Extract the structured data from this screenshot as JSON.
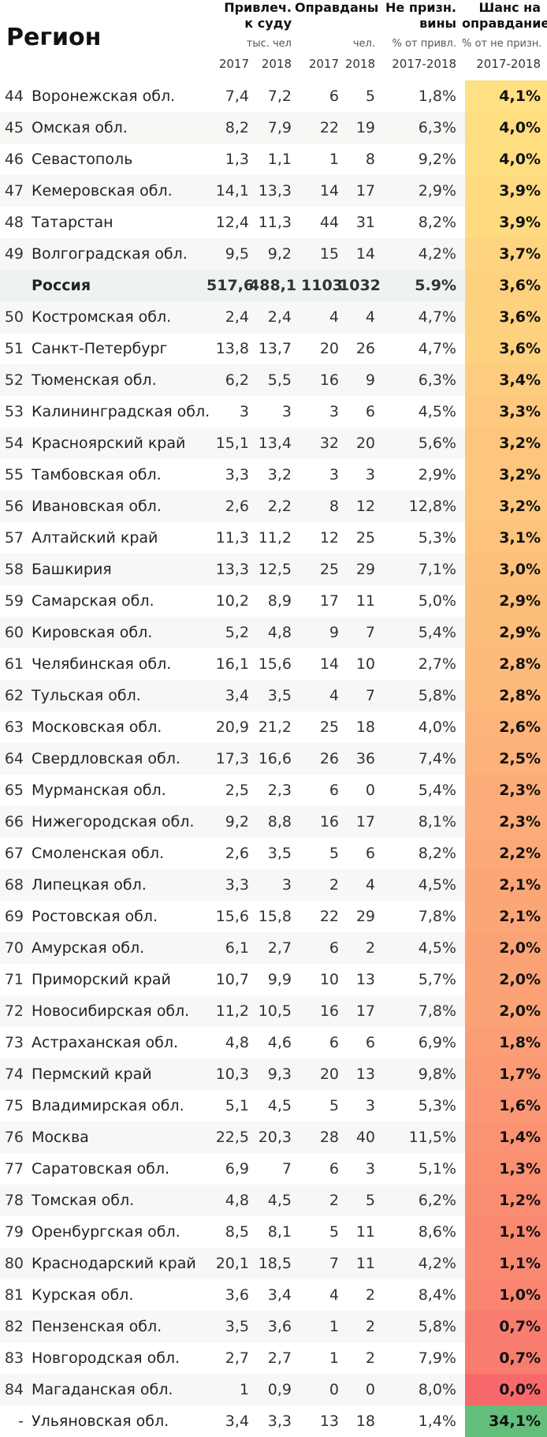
{
  "header": {
    "region": "Регион",
    "col_accused": "Привлеч.\nк суду",
    "col_accused_unit": "тыс. чел",
    "col_acquitted": "Оправданы",
    "col_acquitted_unit": "чел.",
    "col_notguilty": "Не призн.\nвины",
    "col_notguilty_unit": "% от привл.",
    "col_chance": "Шанс на\nоправдание",
    "col_chance_unit": "% от не призн.",
    "year_2017": "2017",
    "year_2018": "2018",
    "years_range": "2017-2018"
  },
  "colors": {
    "chance_high": "#ffe082",
    "chance_low": "#f8696b",
    "chance_top": "#63be7b"
  },
  "rows": [
    {
      "rank": "44",
      "region": "Воронежская обл.",
      "a2017": "7,4",
      "a2018": "7,2",
      "o2017": "6",
      "o2018": "5",
      "notguilty": "1,8%",
      "chance": "4,1%",
      "v": 4.1
    },
    {
      "rank": "45",
      "region": "Омская обл.",
      "a2017": "8,2",
      "a2018": "7,9",
      "o2017": "22",
      "o2018": "19",
      "notguilty": "6,3%",
      "chance": "4,0%",
      "v": 4.0
    },
    {
      "rank": "46",
      "region": "Севастополь",
      "a2017": "1,3",
      "a2018": "1,1",
      "o2017": "1",
      "o2018": "8",
      "notguilty": "9,2%",
      "chance": "4,0%",
      "v": 4.0
    },
    {
      "rank": "47",
      "region": "Кемеровская обл.",
      "a2017": "14,1",
      "a2018": "13,3",
      "o2017": "14",
      "o2018": "17",
      "notguilty": "2,9%",
      "chance": "3,9%",
      "v": 3.9
    },
    {
      "rank": "48",
      "region": "Татарстан",
      "a2017": "12,4",
      "a2018": "11,3",
      "o2017": "44",
      "o2018": "31",
      "notguilty": "8,2%",
      "chance": "3,9%",
      "v": 3.9
    },
    {
      "rank": "49",
      "region": "Волгоградская обл.",
      "a2017": "9,5",
      "a2018": "9,2",
      "o2017": "15",
      "o2018": "14",
      "notguilty": "4,2%",
      "chance": "3,7%",
      "v": 3.7
    },
    {
      "rank": "",
      "region": "Россия",
      "a2017": "517,6",
      "a2018": "488,1",
      "o2017": "1103",
      "o2018": "1032",
      "notguilty": "5.9%",
      "chance": "3,6%",
      "v": 3.6,
      "russia": true
    },
    {
      "rank": "50",
      "region": "Костромская обл.",
      "a2017": "2,4",
      "a2018": "2,4",
      "o2017": "4",
      "o2018": "4",
      "notguilty": "4,7%",
      "chance": "3,6%",
      "v": 3.6
    },
    {
      "rank": "51",
      "region": "Санкт-Петербург",
      "a2017": "13,8",
      "a2018": "13,7",
      "o2017": "20",
      "o2018": "26",
      "notguilty": "4,7%",
      "chance": "3,6%",
      "v": 3.6
    },
    {
      "rank": "52",
      "region": "Тюменская обл.",
      "a2017": "6,2",
      "a2018": "5,5",
      "o2017": "16",
      "o2018": "9",
      "notguilty": "6,3%",
      "chance": "3,4%",
      "v": 3.4
    },
    {
      "rank": "53",
      "region": "Калининградская обл.",
      "a2017": "3",
      "a2018": "3",
      "o2017": "3",
      "o2018": "6",
      "notguilty": "4,5%",
      "chance": "3,3%",
      "v": 3.3
    },
    {
      "rank": "54",
      "region": "Красноярский край",
      "a2017": "15,1",
      "a2018": "13,4",
      "o2017": "32",
      "o2018": "20",
      "notguilty": "5,6%",
      "chance": "3,2%",
      "v": 3.2
    },
    {
      "rank": "55",
      "region": "Тамбовская обл.",
      "a2017": "3,3",
      "a2018": "3,2",
      "o2017": "3",
      "o2018": "3",
      "notguilty": "2,9%",
      "chance": "3,2%",
      "v": 3.2
    },
    {
      "rank": "56",
      "region": "Ивановская обл.",
      "a2017": "2,6",
      "a2018": "2,2",
      "o2017": "8",
      "o2018": "12",
      "notguilty": "12,8%",
      "chance": "3,2%",
      "v": 3.2
    },
    {
      "rank": "57",
      "region": "Алтайский край",
      "a2017": "11,3",
      "a2018": "11,2",
      "o2017": "12",
      "o2018": "25",
      "notguilty": "5,3%",
      "chance": "3,1%",
      "v": 3.1
    },
    {
      "rank": "58",
      "region": "Башкирия",
      "a2017": "13,3",
      "a2018": "12,5",
      "o2017": "25",
      "o2018": "29",
      "notguilty": "7,1%",
      "chance": "3,0%",
      "v": 3.0
    },
    {
      "rank": "59",
      "region": "Самарская обл.",
      "a2017": "10,2",
      "a2018": "8,9",
      "o2017": "17",
      "o2018": "11",
      "notguilty": "5,0%",
      "chance": "2,9%",
      "v": 2.9
    },
    {
      "rank": "60",
      "region": "Кировская обл.",
      "a2017": "5,2",
      "a2018": "4,8",
      "o2017": "9",
      "o2018": "7",
      "notguilty": "5,4%",
      "chance": "2,9%",
      "v": 2.9
    },
    {
      "rank": "61",
      "region": "Челябинская обл.",
      "a2017": "16,1",
      "a2018": "15,6",
      "o2017": "14",
      "o2018": "10",
      "notguilty": "2,7%",
      "chance": "2,8%",
      "v": 2.8
    },
    {
      "rank": "62",
      "region": "Тульская обл.",
      "a2017": "3,4",
      "a2018": "3,5",
      "o2017": "4",
      "o2018": "7",
      "notguilty": "5,8%",
      "chance": "2,8%",
      "v": 2.8
    },
    {
      "rank": "63",
      "region": "Московская обл.",
      "a2017": "20,9",
      "a2018": "21,2",
      "o2017": "25",
      "o2018": "18",
      "notguilty": "4,0%",
      "chance": "2,6%",
      "v": 2.6
    },
    {
      "rank": "64",
      "region": "Свердловская обл.",
      "a2017": "17,3",
      "a2018": "16,6",
      "o2017": "26",
      "o2018": "36",
      "notguilty": "7,4%",
      "chance": "2,5%",
      "v": 2.5
    },
    {
      "rank": "65",
      "region": "Мурманская обл.",
      "a2017": "2,5",
      "a2018": "2,3",
      "o2017": "6",
      "o2018": "0",
      "notguilty": "5,4%",
      "chance": "2,3%",
      "v": 2.3
    },
    {
      "rank": "66",
      "region": "Нижегородская обл.",
      "a2017": "9,2",
      "a2018": "8,8",
      "o2017": "16",
      "o2018": "17",
      "notguilty": "8,1%",
      "chance": "2,3%",
      "v": 2.3
    },
    {
      "rank": "67",
      "region": "Смоленская обл.",
      "a2017": "2,6",
      "a2018": "3,5",
      "o2017": "5",
      "o2018": "6",
      "notguilty": "8,2%",
      "chance": "2,2%",
      "v": 2.2
    },
    {
      "rank": "68",
      "region": "Липецкая обл.",
      "a2017": "3,3",
      "a2018": "3",
      "o2017": "2",
      "o2018": "4",
      "notguilty": "4,5%",
      "chance": "2,1%",
      "v": 2.1
    },
    {
      "rank": "69",
      "region": "Ростовская обл.",
      "a2017": "15,6",
      "a2018": "15,8",
      "o2017": "22",
      "o2018": "29",
      "notguilty": "7,8%",
      "chance": "2,1%",
      "v": 2.1
    },
    {
      "rank": "70",
      "region": "Амурская обл.",
      "a2017": "6,1",
      "a2018": "2,7",
      "o2017": "6",
      "o2018": "2",
      "notguilty": "4,5%",
      "chance": "2,0%",
      "v": 2.0
    },
    {
      "rank": "71",
      "region": "Приморский край",
      "a2017": "10,7",
      "a2018": "9,9",
      "o2017": "10",
      "o2018": "13",
      "notguilty": "5,7%",
      "chance": "2,0%",
      "v": 2.0
    },
    {
      "rank": "72",
      "region": "Новосибирская обл.",
      "a2017": "11,2",
      "a2018": "10,5",
      "o2017": "16",
      "o2018": "17",
      "notguilty": "7,8%",
      "chance": "2,0%",
      "v": 2.0
    },
    {
      "rank": "73",
      "region": "Астраханская обл.",
      "a2017": "4,8",
      "a2018": "4,6",
      "o2017": "6",
      "o2018": "6",
      "notguilty": "6,9%",
      "chance": "1,8%",
      "v": 1.8
    },
    {
      "rank": "74",
      "region": "Пермский край",
      "a2017": "10,3",
      "a2018": "9,3",
      "o2017": "20",
      "o2018": "13",
      "notguilty": "9,8%",
      "chance": "1,7%",
      "v": 1.7
    },
    {
      "rank": "75",
      "region": "Владимирская обл.",
      "a2017": "5,1",
      "a2018": "4,5",
      "o2017": "5",
      "o2018": "3",
      "notguilty": "5,3%",
      "chance": "1,6%",
      "v": 1.6
    },
    {
      "rank": "76",
      "region": "Москва",
      "a2017": "22,5",
      "a2018": "20,3",
      "o2017": "28",
      "o2018": "40",
      "notguilty": "11,5%",
      "chance": "1,4%",
      "v": 1.4
    },
    {
      "rank": "77",
      "region": "Саратовская обл.",
      "a2017": "6,9",
      "a2018": "7",
      "o2017": "6",
      "o2018": "3",
      "notguilty": "5,1%",
      "chance": "1,3%",
      "v": 1.3
    },
    {
      "rank": "78",
      "region": "Томская обл.",
      "a2017": "4,8",
      "a2018": "4,5",
      "o2017": "2",
      "o2018": "5",
      "notguilty": "6,2%",
      "chance": "1,2%",
      "v": 1.2
    },
    {
      "rank": "79",
      "region": "Оренбургская обл.",
      "a2017": "8,5",
      "a2018": "8,1",
      "o2017": "5",
      "o2018": "11",
      "notguilty": "8,6%",
      "chance": "1,1%",
      "v": 1.1
    },
    {
      "rank": "80",
      "region": "Краснодарский край",
      "a2017": "20,1",
      "a2018": "18,5",
      "o2017": "7",
      "o2018": "11",
      "notguilty": "4,2%",
      "chance": "1,1%",
      "v": 1.1
    },
    {
      "rank": "81",
      "region": "Курская обл.",
      "a2017": "3,6",
      "a2018": "3,4",
      "o2017": "4",
      "o2018": "2",
      "notguilty": "8,4%",
      "chance": "1,0%",
      "v": 1.0
    },
    {
      "rank": "82",
      "region": "Пензенская обл.",
      "a2017": "3,5",
      "a2018": "3,6",
      "o2017": "1",
      "o2018": "2",
      "notguilty": "5,8%",
      "chance": "0,7%",
      "v": 0.7
    },
    {
      "rank": "83",
      "region": "Новгородская обл.",
      "a2017": "2,7",
      "a2018": "2,7",
      "o2017": "1",
      "o2018": "2",
      "notguilty": "7,9%",
      "chance": "0,7%",
      "v": 0.7
    },
    {
      "rank": "84",
      "region": "Магаданская обл.",
      "a2017": "1",
      "a2018": "0,9",
      "o2017": "0",
      "o2018": "0",
      "notguilty": "8,0%",
      "chance": "0,0%",
      "v": 0.0
    },
    {
      "rank": "-",
      "region": "Ульяновская обл.",
      "a2017": "3,4",
      "a2018": "3,3",
      "o2017": "13",
      "o2018": "18",
      "notguilty": "1,4%",
      "chance": "34,1%",
      "v": 34.1
    }
  ]
}
